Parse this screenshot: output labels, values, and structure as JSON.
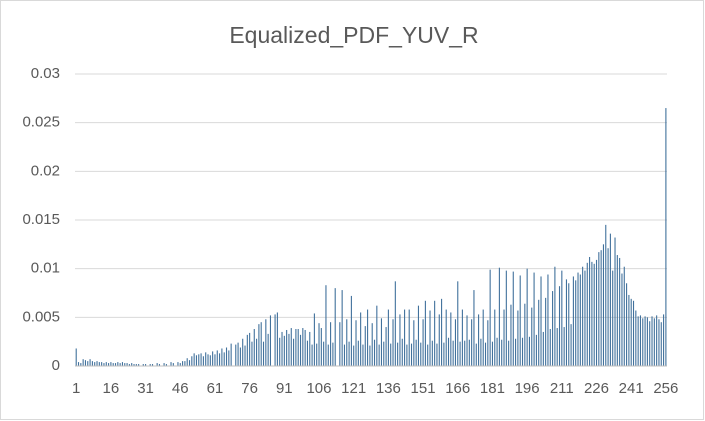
{
  "chart_data": {
    "type": "bar",
    "title": "Equalized_PDF_YUV_R",
    "categories": [
      1,
      null,
      null,
      null,
      null,
      null,
      null,
      null,
      null,
      null,
      null,
      null,
      null,
      null,
      null,
      16,
      null,
      null,
      null,
      null,
      null,
      null,
      null,
      null,
      null,
      null,
      null,
      null,
      null,
      null,
      31,
      null,
      null,
      null,
      null,
      null,
      null,
      null,
      null,
      null,
      null,
      null,
      null,
      null,
      null,
      46,
      null,
      null,
      null,
      null,
      null,
      null,
      null,
      null,
      null,
      null,
      null,
      null,
      null,
      null,
      61,
      null,
      null,
      null,
      null,
      null,
      null,
      null,
      null,
      null,
      null,
      null,
      null,
      null,
      null,
      76,
      null,
      null,
      null,
      null,
      null,
      null,
      null,
      null,
      null,
      null,
      null,
      null,
      null,
      null,
      91,
      null,
      null,
      null,
      null,
      null,
      null,
      null,
      null,
      null,
      null,
      null,
      null,
      null,
      null,
      106,
      null,
      null,
      null,
      null,
      null,
      null,
      null,
      null,
      null,
      null,
      null,
      null,
      null,
      null,
      121,
      null,
      null,
      null,
      null,
      null,
      null,
      null,
      null,
      null,
      null,
      null,
      null,
      null,
      null,
      136,
      null,
      null,
      null,
      null,
      null,
      null,
      null,
      null,
      null,
      null,
      null,
      null,
      null,
      null,
      151,
      null,
      null,
      null,
      null,
      null,
      null,
      null,
      null,
      null,
      null,
      null,
      null,
      null,
      null,
      166,
      null,
      null,
      null,
      null,
      null,
      null,
      null,
      null,
      null,
      null,
      null,
      null,
      null,
      null,
      181,
      null,
      null,
      null,
      null,
      null,
      null,
      null,
      null,
      null,
      null,
      null,
      null,
      null,
      null,
      196,
      null,
      null,
      null,
      null,
      null,
      null,
      null,
      null,
      null,
      null,
      null,
      null,
      null,
      null,
      211,
      null,
      null,
      null,
      null,
      null,
      null,
      null,
      null,
      null,
      null,
      null,
      null,
      null,
      null,
      226,
      null,
      null,
      null,
      null,
      null,
      null,
      null,
      null,
      null,
      null,
      null,
      null,
      null,
      null,
      241,
      null,
      null,
      null,
      null,
      null,
      null,
      null,
      null,
      null,
      null,
      null,
      null,
      null,
      null,
      256
    ],
    "values": [
      0.0018,
      0.0004,
      0.0003,
      0.0007,
      0.0006,
      0.0005,
      0.0007,
      0.0005,
      0.0004,
      0.0005,
      0.0004,
      0.0004,
      0.0003,
      0.0004,
      0.0003,
      0.0004,
      0.0003,
      0.0003,
      0.0004,
      0.0003,
      0.0004,
      0.0003,
      0.0003,
      0.0002,
      0.0003,
      0.0002,
      0.0002,
      0.0002,
      0,
      0.0002,
      0.0002,
      0,
      0.0002,
      0.0002,
      0,
      0.0003,
      0.0002,
      0,
      0.0003,
      0.0002,
      0,
      0.0004,
      0.0003,
      0,
      0.0004,
      0.0003,
      0.0005,
      0.0005,
      0.0008,
      0.0006,
      0.001,
      0.0013,
      0.0011,
      0.0012,
      0.0013,
      0.001,
      0.0014,
      0.0012,
      0.0011,
      0.0015,
      0.0012,
      0.0016,
      0.0013,
      0.0018,
      0.0014,
      0.0019,
      0.0016,
      0.0023,
      0,
      0.0022,
      0.0024,
      0.0019,
      0.0028,
      0.0021,
      0.0032,
      0.0034,
      0.0025,
      0.0038,
      0.0028,
      0.0043,
      0.0045,
      0.0025,
      0.0048,
      0.0033,
      0.0052,
      0,
      0.0053,
      0.0055,
      0.0029,
      0.0035,
      0.0031,
      0.0037,
      0.0033,
      0.0039,
      0.0028,
      0.0038,
      0.0038,
      0.0032,
      0.0039,
      0.0037,
      0.0026,
      0.0035,
      0.0022,
      0.0054,
      0.0023,
      0.0044,
      0.0039,
      0.0025,
      0.0083,
      0.0022,
      0.0045,
      0.0024,
      0.008,
      0,
      0.0045,
      0.0078,
      0.0022,
      0.0048,
      0.0025,
      0.0072,
      0.0021,
      0.0047,
      0.0026,
      0.0055,
      0.0022,
      0.0041,
      0.0058,
      0.0021,
      0.0044,
      0.0027,
      0.0062,
      0.0022,
      0.0049,
      0.0025,
      0.004,
      0.0058,
      0.0023,
      0.0048,
      0.0087,
      0.0024,
      0.0053,
      0.0028,
      0.0058,
      0.0022,
      0.0058,
      0.0023,
      0.0047,
      0.0027,
      0.0062,
      0.0024,
      0.0048,
      0.0067,
      0.0022,
      0.0057,
      0.0026,
      0.0067,
      0.0023,
      0.0053,
      0.0069,
      0.0024,
      0.0058,
      0.0029,
      0.0055,
      0.0026,
      0.0048,
      0.0087,
      0.0025,
      0.0058,
      0.0026,
      0.0052,
      0.0027,
      0.0048,
      0.0078,
      0.0023,
      0.0053,
      0.0028,
      0.0058,
      0.0024,
      0.0047,
      0.0099,
      0.0025,
      0.0058,
      0.0029,
      0.0101,
      0.0027,
      0.0058,
      0.0098,
      0.0026,
      0.0063,
      0.0097,
      0.0028,
      0.0057,
      0.0093,
      0.0029,
      0.0064,
      0.01,
      0.003,
      0.006,
      0.0096,
      0.0032,
      0.0068,
      0.0092,
      0.0035,
      0.007,
      0.0094,
      0.0038,
      0.0077,
      0.0102,
      0.0039,
      0.0082,
      0.0098,
      0.004,
      0.0089,
      0.0085,
      0.0043,
      0.0092,
      0.0088,
      0.0096,
      0.0094,
      0.0102,
      0.0098,
      0.0106,
      0.0112,
      0.0107,
      0.0105,
      0.0109,
      0.0117,
      0.0119,
      0.0125,
      0.0145,
      0.0121,
      0.0136,
      0.0098,
      0.0132,
      0.0114,
      0.0111,
      0.0095,
      0.0102,
      0.0085,
      0.0073,
      0.0069,
      0.0067,
      0.0057,
      0.0051,
      0.0052,
      0.0049,
      0.0051,
      0.005,
      0.0046,
      0.0051,
      0.0049,
      0.0052,
      0.0048,
      0.0045,
      0.0053,
      0.0265
    ],
    "color": "#41719c",
    "ylim": [
      0,
      0.03
    ],
    "yticks": [
      0,
      0.005,
      0.01,
      0.015,
      0.02,
      0.025,
      0.03
    ],
    "grid": true
  }
}
